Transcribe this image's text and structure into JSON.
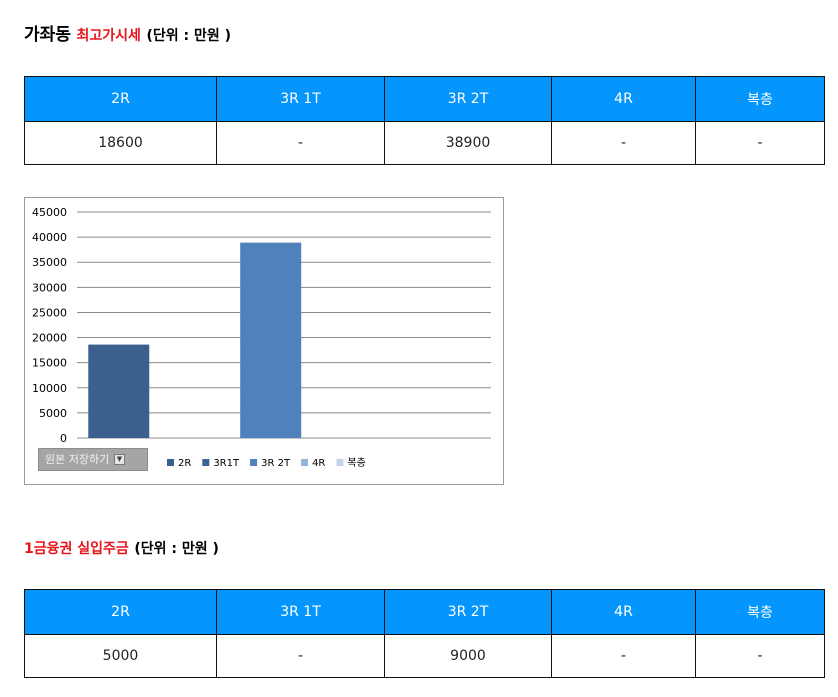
{
  "section1": {
    "title": "가좌동",
    "subtitle": "최고가시세",
    "unit": "(단위 : 만원 )",
    "headers": [
      "2R",
      "3R 1T",
      "3R 2T",
      "4R",
      "복층"
    ],
    "values": [
      "18600",
      "-",
      "38900",
      "-",
      "-"
    ]
  },
  "chart_controls": {
    "save_label": "원본 저장하기",
    "dropdown_icon": "chevron-down-icon"
  },
  "chart_data": {
    "type": "bar",
    "categories": [
      "2R",
      "3R1T",
      "3R 2T",
      "4R",
      "복층"
    ],
    "values": [
      18600,
      null,
      38900,
      null,
      null
    ],
    "ylim": [
      0,
      45000
    ],
    "yticks": [
      0,
      5000,
      10000,
      15000,
      20000,
      25000,
      30000,
      35000,
      40000,
      45000
    ],
    "grid": true,
    "legend": "bottom",
    "colors": [
      "#3b5f8f",
      "#3e6597",
      "#4f81bd",
      "#95b3d7",
      "#c5d3e8"
    ]
  },
  "section2": {
    "title": "1금융권 실입주금",
    "unit": "(단위 : 만원 )",
    "headers": [
      "2R",
      "3R 1T",
      "3R 2T",
      "4R",
      "복층"
    ],
    "values": [
      "5000",
      "-",
      "9000",
      "-",
      "-"
    ]
  }
}
